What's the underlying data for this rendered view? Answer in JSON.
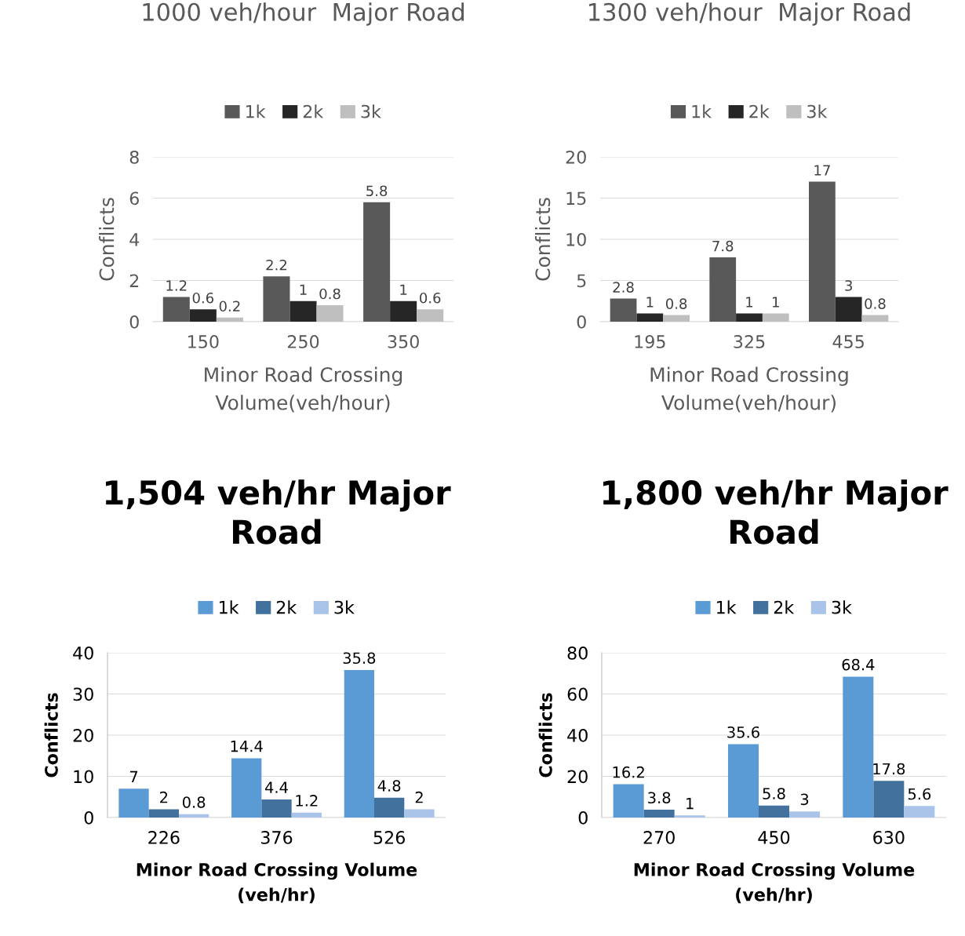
{
  "chart_data": [
    {
      "type": "bar",
      "title": "1000 veh/hour  Major Road",
      "xlabel": "Minor Road Crossing Volume(veh/hour)",
      "ylabel": "Conflicts",
      "categories": [
        "150",
        "250",
        "350"
      ],
      "ylim": [
        0,
        8
      ],
      "yticks": [
        0,
        2,
        4,
        6,
        8
      ],
      "grid": "y",
      "legend": "top",
      "data_labels": true,
      "series": [
        {
          "name": "1k",
          "color": "#595959",
          "values": [
            1.2,
            2.2,
            5.8
          ]
        },
        {
          "name": "2k",
          "color": "#262626",
          "values": [
            0.6,
            1,
            1
          ]
        },
        {
          "name": "3k",
          "color": "#bfbfbf",
          "values": [
            0.2,
            0.8,
            0.6
          ]
        }
      ]
    },
    {
      "type": "bar",
      "title": "1300 veh/hour  Major Road",
      "xlabel": "Minor Road Crossing Volume(veh/hour)",
      "ylabel": "Conflicts",
      "categories": [
        "195",
        "325",
        "455"
      ],
      "ylim": [
        0,
        20
      ],
      "yticks": [
        0,
        5,
        10,
        15,
        20
      ],
      "grid": "y",
      "legend": "top",
      "data_labels": true,
      "series": [
        {
          "name": "1k",
          "color": "#595959",
          "values": [
            2.8,
            7.8,
            17
          ]
        },
        {
          "name": "2k",
          "color": "#262626",
          "values": [
            1,
            1,
            3
          ]
        },
        {
          "name": "3k",
          "color": "#bfbfbf",
          "values": [
            0.8,
            1,
            0.8
          ]
        }
      ]
    },
    {
      "type": "bar",
      "title": "1,504 veh/hr Major Road",
      "xlabel": "Minor Road Crossing Volume (veh/hr)",
      "ylabel": "Conflicts",
      "categories": [
        "226",
        "376",
        "526"
      ],
      "ylim": [
        0,
        40
      ],
      "yticks": [
        0,
        10,
        20,
        30,
        40
      ],
      "grid": "y",
      "legend": "top",
      "data_labels": true,
      "series": [
        {
          "name": "1k",
          "color": "#5b9bd5",
          "values": [
            7,
            14.4,
            35.8
          ]
        },
        {
          "name": "2k",
          "color": "#41719c",
          "values": [
            2,
            4.4,
            4.8
          ]
        },
        {
          "name": "3k",
          "color": "#a9c4e8",
          "values": [
            0.8,
            1.2,
            2
          ]
        }
      ]
    },
    {
      "type": "bar",
      "title": "1,800 veh/hr Major Road",
      "xlabel": "Minor Road Crossing Volume (veh/hr)",
      "ylabel": "Conflicts",
      "categories": [
        "270",
        "450",
        "630"
      ],
      "ylim": [
        0,
        80
      ],
      "yticks": [
        0,
        20,
        40,
        60,
        80
      ],
      "grid": "y",
      "legend": "top",
      "data_labels": true,
      "series": [
        {
          "name": "1k",
          "color": "#5b9bd5",
          "values": [
            16.2,
            35.6,
            68.4
          ]
        },
        {
          "name": "2k",
          "color": "#41719c",
          "values": [
            3.8,
            5.8,
            17.8
          ]
        },
        {
          "name": "3k",
          "color": "#a9c4e8",
          "values": [
            1,
            3,
            5.6
          ]
        }
      ]
    }
  ]
}
